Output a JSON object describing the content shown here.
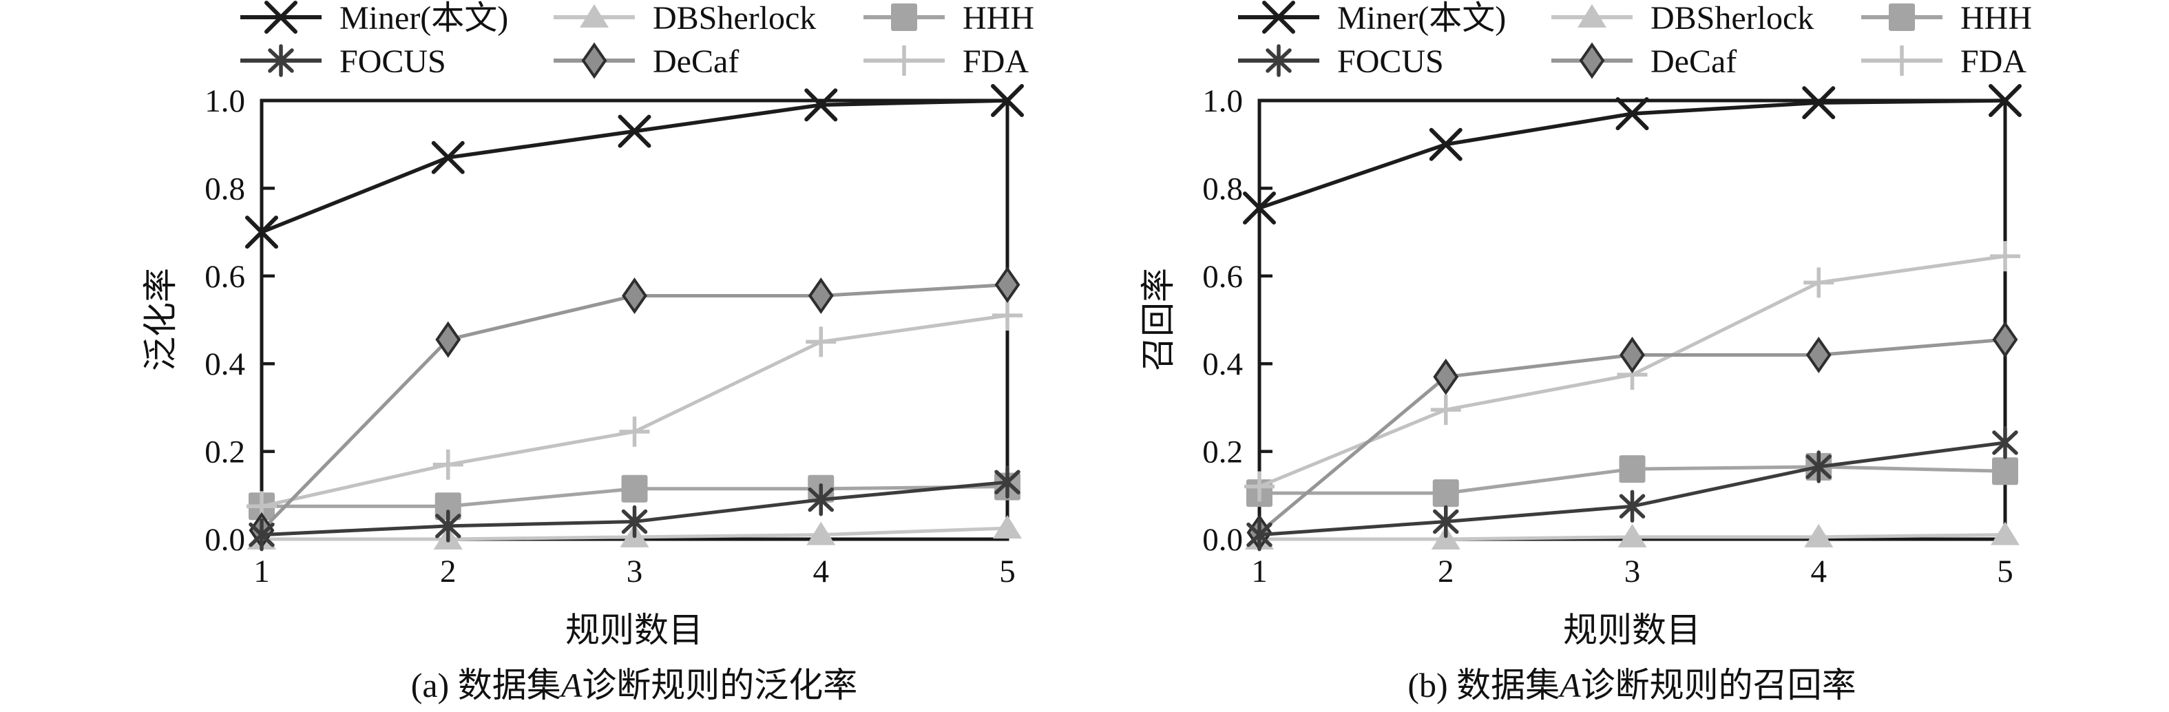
{
  "figure": {
    "background": "#ffffff",
    "axis_color": "#1a1a1a",
    "text_color": "#111111"
  },
  "chart_data": [
    {
      "id": "a",
      "type": "line",
      "xlabel": "规则数目",
      "ylabel": "泛化率",
      "caption": {
        "prefix": "(a) 数据集",
        "letter": "A",
        "suffix": "诊断规则的泛化率"
      },
      "x": [
        1,
        2,
        3,
        4,
        5
      ],
      "xtick_labels": [
        "1",
        "2",
        "3",
        "4",
        "5"
      ],
      "ytick_labels": [
        "0.0",
        "0.2",
        "0.4",
        "0.6",
        "0.8",
        "1.0"
      ],
      "ylim": [
        0.0,
        1.0
      ],
      "grid": false,
      "legend_position": "top",
      "series": [
        {
          "name": "Miner(本文)",
          "marker": "x",
          "line_color": "#1c1c1c",
          "marker_color": "#1c1c1c",
          "values": [
            0.7,
            0.87,
            0.93,
            0.99,
            1.0
          ]
        },
        {
          "name": "DBSherlock",
          "marker": "triangle",
          "line_color": "#c6c6c6",
          "marker_color": "#c3c3c3",
          "values": [
            0.0,
            0.0,
            0.005,
            0.01,
            0.025
          ]
        },
        {
          "name": "HHH",
          "marker": "square",
          "line_color": "#a4a4a4",
          "marker_color": "#a4a4a4",
          "values": [
            0.075,
            0.075,
            0.115,
            0.115,
            0.12
          ]
        },
        {
          "name": "FOCUS",
          "marker": "asterisk",
          "line_color": "#3c3c3c",
          "marker_color": "#3c3c3c",
          "values": [
            0.01,
            0.03,
            0.04,
            0.09,
            0.13
          ]
        },
        {
          "name": "DeCaf",
          "marker": "diamond",
          "line_color": "#969696",
          "marker_color": "#8e8e8e",
          "marker_edge": "#2e2e2e",
          "values": [
            0.02,
            0.455,
            0.555,
            0.555,
            0.58
          ]
        },
        {
          "name": "FDA",
          "marker": "plus",
          "line_color": "#c2c2c2",
          "marker_color": "#c2c2c2",
          "values": [
            0.075,
            0.17,
            0.245,
            0.45,
            0.51
          ]
        }
      ]
    },
    {
      "id": "b",
      "type": "line",
      "xlabel": "规则数目",
      "ylabel": "召回率",
      "caption": {
        "prefix": "(b) 数据集",
        "letter": "A",
        "suffix": "诊断规则的召回率"
      },
      "x": [
        1,
        2,
        3,
        4,
        5
      ],
      "xtick_labels": [
        "1",
        "2",
        "3",
        "4",
        "5"
      ],
      "ytick_labels": [
        "0.0",
        "0.2",
        "0.4",
        "0.6",
        "0.8",
        "1.0"
      ],
      "ylim": [
        0.0,
        1.0
      ],
      "grid": false,
      "legend_position": "top",
      "series": [
        {
          "name": "Miner(本文)",
          "marker": "x",
          "line_color": "#1c1c1c",
          "marker_color": "#1c1c1c",
          "values": [
            0.755,
            0.9,
            0.97,
            0.995,
            1.0
          ]
        },
        {
          "name": "DBSherlock",
          "marker": "triangle",
          "line_color": "#c6c6c6",
          "marker_color": "#c3c3c3",
          "values": [
            0.0,
            0.0,
            0.005,
            0.005,
            0.01
          ]
        },
        {
          "name": "HHH",
          "marker": "square",
          "line_color": "#a4a4a4",
          "marker_color": "#a4a4a4",
          "values": [
            0.105,
            0.105,
            0.16,
            0.165,
            0.155
          ]
        },
        {
          "name": "FOCUS",
          "marker": "asterisk",
          "line_color": "#3c3c3c",
          "marker_color": "#3c3c3c",
          "values": [
            0.01,
            0.04,
            0.075,
            0.165,
            0.22
          ]
        },
        {
          "name": "DeCaf",
          "marker": "diamond",
          "line_color": "#969696",
          "marker_color": "#8e8e8e",
          "marker_edge": "#2e2e2e",
          "values": [
            0.015,
            0.37,
            0.42,
            0.42,
            0.455
          ]
        },
        {
          "name": "FDA",
          "marker": "plus",
          "line_color": "#c2c2c2",
          "marker_color": "#c2c2c2",
          "values": [
            0.12,
            0.295,
            0.375,
            0.585,
            0.645
          ]
        }
      ]
    }
  ]
}
